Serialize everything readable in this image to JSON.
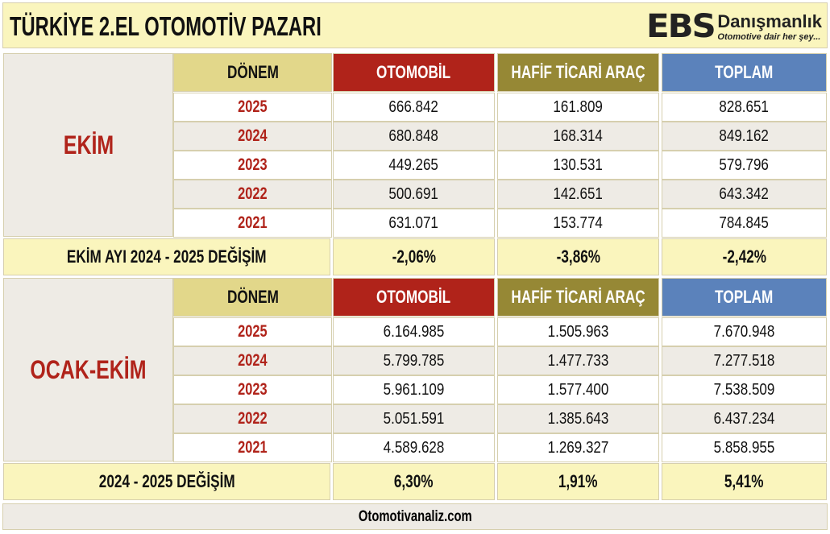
{
  "title": "TÜRKİYE 2.EL OTOMOTİV PAZARI",
  "logo": {
    "mark": "EBS",
    "name": "Danışmanlık",
    "slogan": "Otomotive dair her şey..."
  },
  "headers": {
    "period": "DÖNEM",
    "car": "OTOMOBİL",
    "lcv": "HAFİF TİCARİ ARAÇ",
    "total": "TOPLAM"
  },
  "colors": {
    "car": "#b0231a",
    "lcv": "#968835",
    "total": "#5b82bb",
    "period": "#e2d78a",
    "highlight": "#faf5bd"
  },
  "sections": [
    {
      "label": "EKİM",
      "rows": [
        {
          "year": "2025",
          "car": "666.842",
          "lcv": "161.809",
          "total": "828.651"
        },
        {
          "year": "2024",
          "car": "680.848",
          "lcv": "168.314",
          "total": "849.162"
        },
        {
          "year": "2023",
          "car": "449.265",
          "lcv": "130.531",
          "total": "579.796"
        },
        {
          "year": "2022",
          "car": "500.691",
          "lcv": "142.651",
          "total": "643.342"
        },
        {
          "year": "2021",
          "car": "631.071",
          "lcv": "153.774",
          "total": "784.845"
        }
      ],
      "change": {
        "label": "EKİM AYI  2024 - 2025 DEĞİŞİM",
        "car": "-2,06%",
        "lcv": "-3,86%",
        "total": "-2,42%"
      }
    },
    {
      "label": "OCAK-EKİM",
      "rows": [
        {
          "year": "2025",
          "car": "6.164.985",
          "lcv": "1.505.963",
          "total": "7.670.948"
        },
        {
          "year": "2024",
          "car": "5.799.785",
          "lcv": "1.477.733",
          "total": "7.277.518"
        },
        {
          "year": "2023",
          "car": "5.961.109",
          "lcv": "1.577.400",
          "total": "7.538.509"
        },
        {
          "year": "2022",
          "car": "5.051.591",
          "lcv": "1.385.643",
          "total": "6.437.234"
        },
        {
          "year": "2021",
          "car": "4.589.628",
          "lcv": "1.269.327",
          "total": "5.858.955"
        }
      ],
      "change": {
        "label": "2024 - 2025 DEĞİŞİM",
        "car": "6,30%",
        "lcv": "1,91%",
        "total": "5,41%"
      }
    }
  ],
  "footer": "Otomotivanaliz.com"
}
